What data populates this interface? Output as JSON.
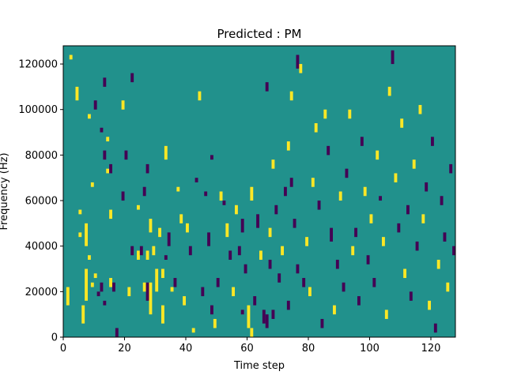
{
  "chart_data": {
    "type": "heatmap",
    "title": "Predicted : PM",
    "xlabel": "Time step",
    "ylabel": "Frequency (Hz)",
    "xlim": [
      0,
      128
    ],
    "ylim": [
      0,
      128000
    ],
    "xticks": [
      0,
      20,
      40,
      60,
      80,
      100,
      120
    ],
    "xtick_labels": [
      "0",
      "20",
      "40",
      "60",
      "80",
      "100",
      "120"
    ],
    "yticks": [
      0,
      20000,
      40000,
      60000,
      80000,
      100000,
      120000
    ],
    "ytick_labels": [
      "0",
      "20000",
      "40000",
      "60000",
      "80000",
      "100000",
      "120000"
    ],
    "grid": false,
    "colormap": "viridis",
    "colors": {
      "background": "#21918c",
      "high": "#fde725",
      "low": "#440154"
    },
    "background_value": 0,
    "cells_note_values": "cells listed as [time_step, freq_start_hz, freq_end_hz, value] where value 1 = high (yellow), -1 = low (purple)",
    "cells": [
      [
        2,
        122000,
        124000,
        1
      ],
      [
        1,
        14000,
        22000,
        1
      ],
      [
        4,
        104000,
        110000,
        1
      ],
      [
        5,
        54000,
        56000,
        1
      ],
      [
        5,
        44000,
        46000,
        1
      ],
      [
        6,
        6000,
        14000,
        1
      ],
      [
        7,
        40000,
        50000,
        1
      ],
      [
        7,
        16000,
        30000,
        1
      ],
      [
        8,
        96000,
        98000,
        1
      ],
      [
        8,
        34000,
        36000,
        1
      ],
      [
        9,
        66000,
        68000,
        1
      ],
      [
        9,
        22000,
        24000,
        1
      ],
      [
        10,
        100000,
        104000,
        -1
      ],
      [
        10,
        26000,
        28000,
        1
      ],
      [
        11,
        18000,
        20000,
        -1
      ],
      [
        12,
        90000,
        92000,
        -1
      ],
      [
        12,
        20000,
        24000,
        -1
      ],
      [
        13,
        110000,
        114000,
        -1
      ],
      [
        13,
        78000,
        82000,
        -1
      ],
      [
        13,
        14000,
        16000,
        -1
      ],
      [
        14,
        86000,
        88000,
        1
      ],
      [
        14,
        72000,
        74000,
        1
      ],
      [
        15,
        52000,
        56000,
        1
      ],
      [
        15,
        72000,
        76000,
        -1
      ],
      [
        15,
        22000,
        26000,
        1
      ],
      [
        16,
        20000,
        24000,
        -1
      ],
      [
        17,
        0,
        4000,
        -1
      ],
      [
        19,
        100000,
        104000,
        1
      ],
      [
        19,
        60000,
        64000,
        -1
      ],
      [
        20,
        78000,
        82000,
        -1
      ],
      [
        21,
        18000,
        22000,
        1
      ],
      [
        22,
        36000,
        40000,
        -1
      ],
      [
        22,
        112000,
        116000,
        -1
      ],
      [
        24,
        56000,
        58000,
        1
      ],
      [
        24,
        34000,
        38000,
        1
      ],
      [
        25,
        36000,
        40000,
        -1
      ],
      [
        26,
        20000,
        24000,
        1
      ],
      [
        26,
        62000,
        66000,
        -1
      ],
      [
        27,
        34000,
        38000,
        1
      ],
      [
        27,
        16000,
        24000,
        -1
      ],
      [
        27,
        72000,
        76000,
        -1
      ],
      [
        28,
        10000,
        24000,
        1
      ],
      [
        28,
        46000,
        52000,
        1
      ],
      [
        29,
        36000,
        40000,
        1
      ],
      [
        30,
        20000,
        30000,
        1
      ],
      [
        31,
        44000,
        48000,
        1
      ],
      [
        32,
        6000,
        14000,
        1
      ],
      [
        32,
        26000,
        30000,
        1
      ],
      [
        33,
        78000,
        84000,
        1
      ],
      [
        33,
        34000,
        36000,
        -1
      ],
      [
        34,
        40000,
        46000,
        -1
      ],
      [
        35,
        20000,
        22000,
        1
      ],
      [
        36,
        22000,
        26000,
        -1
      ],
      [
        37,
        64000,
        66000,
        1
      ],
      [
        38,
        50000,
        54000,
        1
      ],
      [
        39,
        14000,
        18000,
        1
      ],
      [
        40,
        46000,
        50000,
        1
      ],
      [
        41,
        36000,
        40000,
        -1
      ],
      [
        42,
        2000,
        4000,
        1
      ],
      [
        43,
        68000,
        70000,
        -1
      ],
      [
        44,
        104000,
        108000,
        1
      ],
      [
        45,
        18000,
        22000,
        -1
      ],
      [
        46,
        62000,
        64000,
        -1
      ],
      [
        47,
        40000,
        46000,
        -1
      ],
      [
        48,
        10000,
        14000,
        -1
      ],
      [
        48,
        78000,
        80000,
        -1
      ],
      [
        49,
        4000,
        8000,
        1
      ],
      [
        50,
        22000,
        26000,
        -1
      ],
      [
        51,
        60000,
        64000,
        1
      ],
      [
        52,
        58000,
        60000,
        -1
      ],
      [
        53,
        44000,
        50000,
        1
      ],
      [
        54,
        34000,
        38000,
        -1
      ],
      [
        55,
        18000,
        22000,
        1
      ],
      [
        56,
        54000,
        58000,
        1
      ],
      [
        57,
        36000,
        40000,
        -1
      ],
      [
        58,
        10000,
        12000,
        -1
      ],
      [
        58,
        46000,
        52000,
        -1
      ],
      [
        59,
        28000,
        32000,
        -1
      ],
      [
        60,
        4000,
        14000,
        1
      ],
      [
        61,
        60000,
        66000,
        1
      ],
      [
        61,
        0,
        4000,
        1
      ],
      [
        62,
        14000,
        18000,
        -1
      ],
      [
        63,
        48000,
        54000,
        -1
      ],
      [
        64,
        34000,
        38000,
        1
      ],
      [
        65,
        6000,
        12000,
        -1
      ],
      [
        66,
        108000,
        112000,
        -1
      ],
      [
        66,
        4000,
        10000,
        -1
      ],
      [
        67,
        30000,
        34000,
        -1
      ],
      [
        67,
        44000,
        48000,
        1
      ],
      [
        68,
        74000,
        78000,
        1
      ],
      [
        68,
        8000,
        12000,
        -1
      ],
      [
        69,
        54000,
        58000,
        -1
      ],
      [
        70,
        24000,
        28000,
        -1
      ],
      [
        71,
        36000,
        40000,
        1
      ],
      [
        72,
        62000,
        66000,
        -1
      ],
      [
        73,
        82000,
        86000,
        1
      ],
      [
        73,
        12000,
        16000,
        -1
      ],
      [
        74,
        104000,
        108000,
        1
      ],
      [
        74,
        66000,
        70000,
        -1
      ],
      [
        75,
        48000,
        52000,
        -1
      ],
      [
        76,
        118000,
        124000,
        -1
      ],
      [
        76,
        28000,
        32000,
        -1
      ],
      [
        77,
        116000,
        120000,
        1
      ],
      [
        78,
        22000,
        26000,
        -1
      ],
      [
        79,
        40000,
        44000,
        1
      ],
      [
        80,
        18000,
        22000,
        1
      ],
      [
        81,
        66000,
        70000,
        1
      ],
      [
        82,
        90000,
        94000,
        1
      ],
      [
        83,
        56000,
        60000,
        -1
      ],
      [
        84,
        4000,
        8000,
        -1
      ],
      [
        85,
        96000,
        100000,
        1
      ],
      [
        86,
        80000,
        84000,
        -1
      ],
      [
        87,
        42000,
        48000,
        -1
      ],
      [
        88,
        10000,
        14000,
        1
      ],
      [
        89,
        30000,
        34000,
        -1
      ],
      [
        90,
        60000,
        64000,
        1
      ],
      [
        91,
        20000,
        24000,
        -1
      ],
      [
        92,
        70000,
        74000,
        -1
      ],
      [
        93,
        96000,
        100000,
        1
      ],
      [
        94,
        36000,
        40000,
        1
      ],
      [
        95,
        44000,
        48000,
        -1
      ],
      [
        96,
        14000,
        18000,
        -1
      ],
      [
        97,
        84000,
        88000,
        -1
      ],
      [
        98,
        62000,
        66000,
        1
      ],
      [
        99,
        32000,
        36000,
        -1
      ],
      [
        100,
        50000,
        54000,
        1
      ],
      [
        101,
        22000,
        26000,
        -1
      ],
      [
        102,
        78000,
        82000,
        1
      ],
      [
        103,
        60000,
        62000,
        -1
      ],
      [
        104,
        40000,
        44000,
        1
      ],
      [
        105,
        8000,
        12000,
        1
      ],
      [
        106,
        106000,
        110000,
        1
      ],
      [
        107,
        120000,
        126000,
        -1
      ],
      [
        108,
        68000,
        72000,
        1
      ],
      [
        109,
        46000,
        50000,
        -1
      ],
      [
        110,
        92000,
        96000,
        1
      ],
      [
        111,
        26000,
        30000,
        1
      ],
      [
        112,
        54000,
        58000,
        -1
      ],
      [
        113,
        16000,
        20000,
        -1
      ],
      [
        114,
        74000,
        78000,
        1
      ],
      [
        115,
        38000,
        42000,
        -1
      ],
      [
        116,
        98000,
        102000,
        1
      ],
      [
        117,
        50000,
        54000,
        1
      ],
      [
        118,
        64000,
        68000,
        -1
      ],
      [
        119,
        12000,
        16000,
        1
      ],
      [
        120,
        84000,
        88000,
        -1
      ],
      [
        121,
        2000,
        6000,
        -1
      ],
      [
        122,
        30000,
        34000,
        1
      ],
      [
        123,
        58000,
        62000,
        -1
      ],
      [
        124,
        42000,
        46000,
        -1
      ],
      [
        125,
        20000,
        24000,
        1
      ],
      [
        126,
        72000,
        76000,
        -1
      ],
      [
        127,
        36000,
        40000,
        -1
      ]
    ]
  }
}
